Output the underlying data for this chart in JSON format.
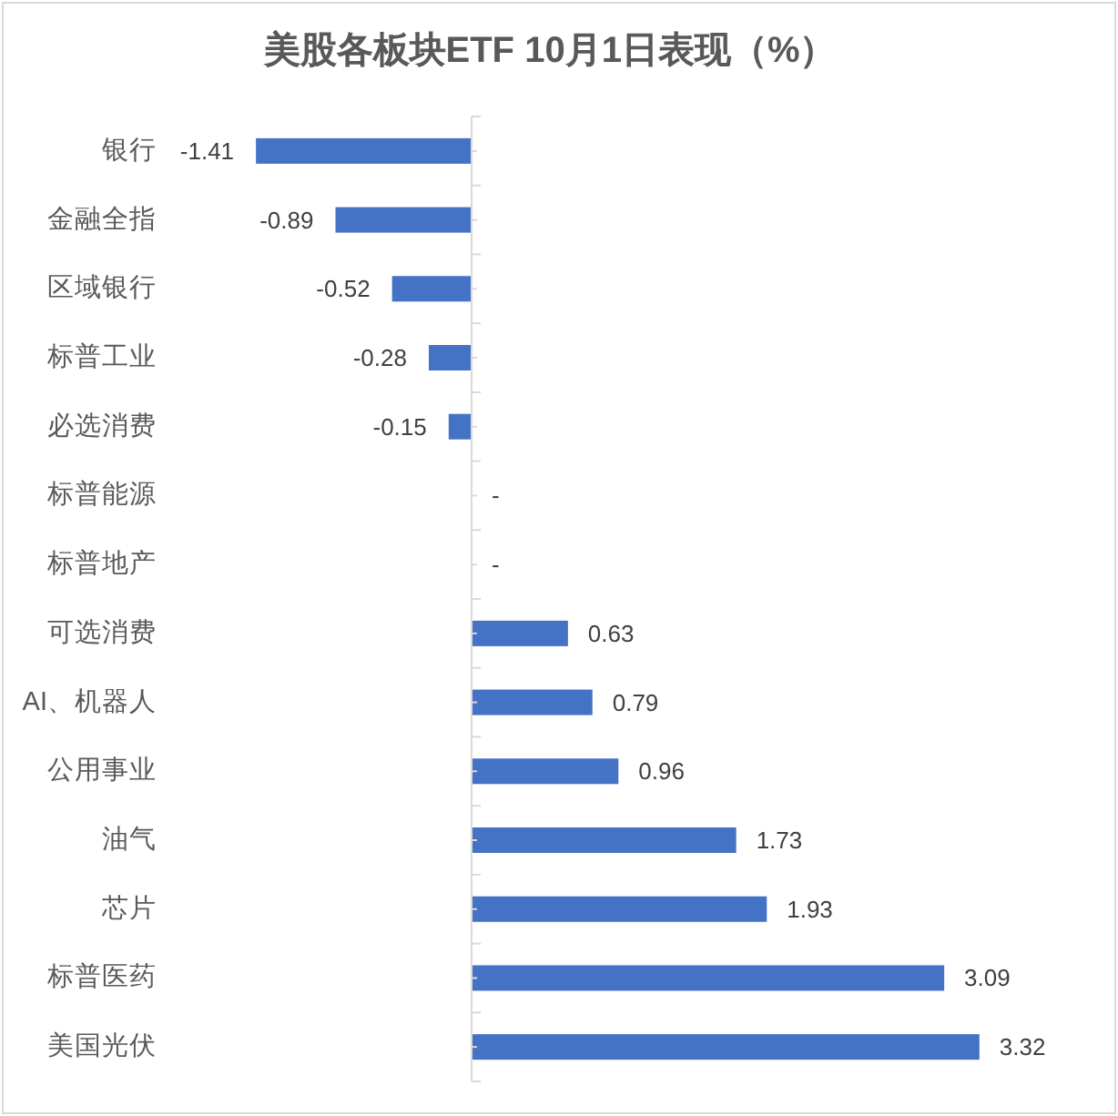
{
  "chart_data": {
    "type": "bar",
    "orientation": "horizontal",
    "title": "美股各板块ETF 10月1日表现（%）",
    "categories": [
      "银行",
      "金融全指",
      "区域银行",
      "标普工业",
      "必选消费",
      "标普能源",
      "标普地产",
      "可选消费",
      "AI、机器人",
      "公用事业",
      "油气",
      "芯片",
      "标普医药",
      "美国光伏"
    ],
    "values": [
      -1.41,
      -0.89,
      -0.52,
      -0.28,
      -0.15,
      0,
      0,
      0.63,
      0.79,
      0.96,
      1.73,
      1.93,
      3.09,
      3.32
    ],
    "value_labels": [
      "-1.41",
      "-0.89",
      "-0.52",
      "-0.28",
      "-0.15",
      "-",
      "-",
      "0.63",
      "0.79",
      "0.96",
      "1.73",
      "1.93",
      "3.09",
      "3.32"
    ],
    "color": "#4472c4",
    "tick_labels": "y"
  }
}
